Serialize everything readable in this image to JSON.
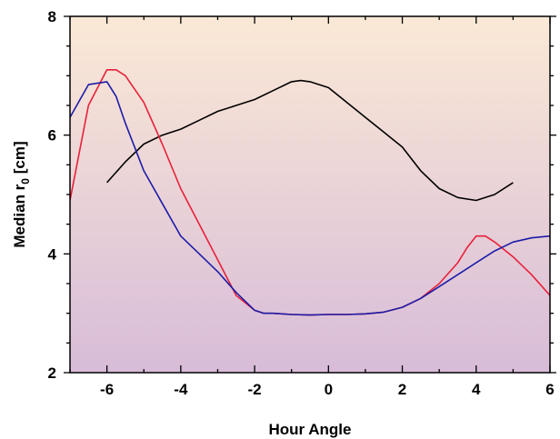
{
  "chart_data": {
    "type": "line",
    "title": "",
    "xlabel": "Hour Angle",
    "ylabel_main": "Median r",
    "ylabel_sub": "0",
    "ylabel_unit": " [cm]",
    "xlim": [
      -7,
      6
    ],
    "ylim": [
      2,
      8
    ],
    "x_ticks": [
      -6,
      -4,
      -2,
      0,
      2,
      4,
      6
    ],
    "x_tick_labels": [
      "-6",
      "-4",
      "-2",
      "0",
      "2",
      "4",
      "6"
    ],
    "y_ticks": [
      2,
      4,
      6,
      8
    ],
    "y_tick_labels": [
      "2",
      "4",
      "6",
      "8"
    ],
    "grid": false,
    "legend": "none",
    "background_gradient": [
      "#fbe9d6",
      "#d8bcd8"
    ],
    "series": [
      {
        "color": "#000000",
        "x": [
          -6,
          -5.5,
          -5,
          -4.5,
          -4,
          -3.5,
          -3,
          -2.5,
          -2,
          -1.5,
          -1,
          -0.75,
          -0.5,
          0,
          0.5,
          1,
          1.5,
          2,
          2.5,
          3,
          3.5,
          4,
          4.5,
          5
        ],
        "y": [
          5.2,
          5.55,
          5.85,
          6.0,
          6.1,
          6.25,
          6.4,
          6.5,
          6.6,
          6.75,
          6.9,
          6.92,
          6.9,
          6.8,
          6.55,
          6.3,
          6.05,
          5.8,
          5.4,
          5.1,
          4.95,
          4.9,
          5.0,
          5.2
        ]
      },
      {
        "color": "#e8203a",
        "x": [
          -7,
          -6.5,
          -6,
          -5.75,
          -5.5,
          -5,
          -4.5,
          -4,
          -3.5,
          -3,
          -2.5,
          -2,
          -1.75,
          -1.5,
          -1,
          -0.5,
          0,
          0.5,
          1,
          1.5,
          2,
          2.5,
          3,
          3.5,
          3.75,
          4,
          4.25,
          4.5,
          5,
          5.5,
          6
        ],
        "y": [
          4.9,
          6.5,
          7.1,
          7.1,
          7.0,
          6.55,
          5.85,
          5.1,
          4.5,
          3.9,
          3.3,
          3.05,
          3.0,
          3.0,
          2.98,
          2.97,
          2.98,
          2.98,
          2.99,
          3.02,
          3.1,
          3.25,
          3.5,
          3.85,
          4.1,
          4.3,
          4.3,
          4.2,
          3.95,
          3.65,
          3.3
        ]
      },
      {
        "color": "#1c1ca8",
        "x": [
          -7,
          -6.5,
          -6,
          -5.75,
          -5.5,
          -5,
          -4.5,
          -4,
          -3.5,
          -3,
          -2.5,
          -2,
          -1.75,
          -1.5,
          -1,
          -0.5,
          0,
          0.5,
          1,
          1.5,
          2,
          2.5,
          3,
          3.5,
          4,
          4.5,
          5,
          5.5,
          6
        ],
        "y": [
          6.3,
          6.85,
          6.9,
          6.65,
          6.2,
          5.4,
          4.85,
          4.3,
          4.0,
          3.7,
          3.35,
          3.05,
          3.0,
          3.0,
          2.98,
          2.97,
          2.98,
          2.98,
          2.99,
          3.02,
          3.1,
          3.25,
          3.45,
          3.65,
          3.85,
          4.05,
          4.2,
          4.27,
          4.3
        ]
      }
    ]
  }
}
